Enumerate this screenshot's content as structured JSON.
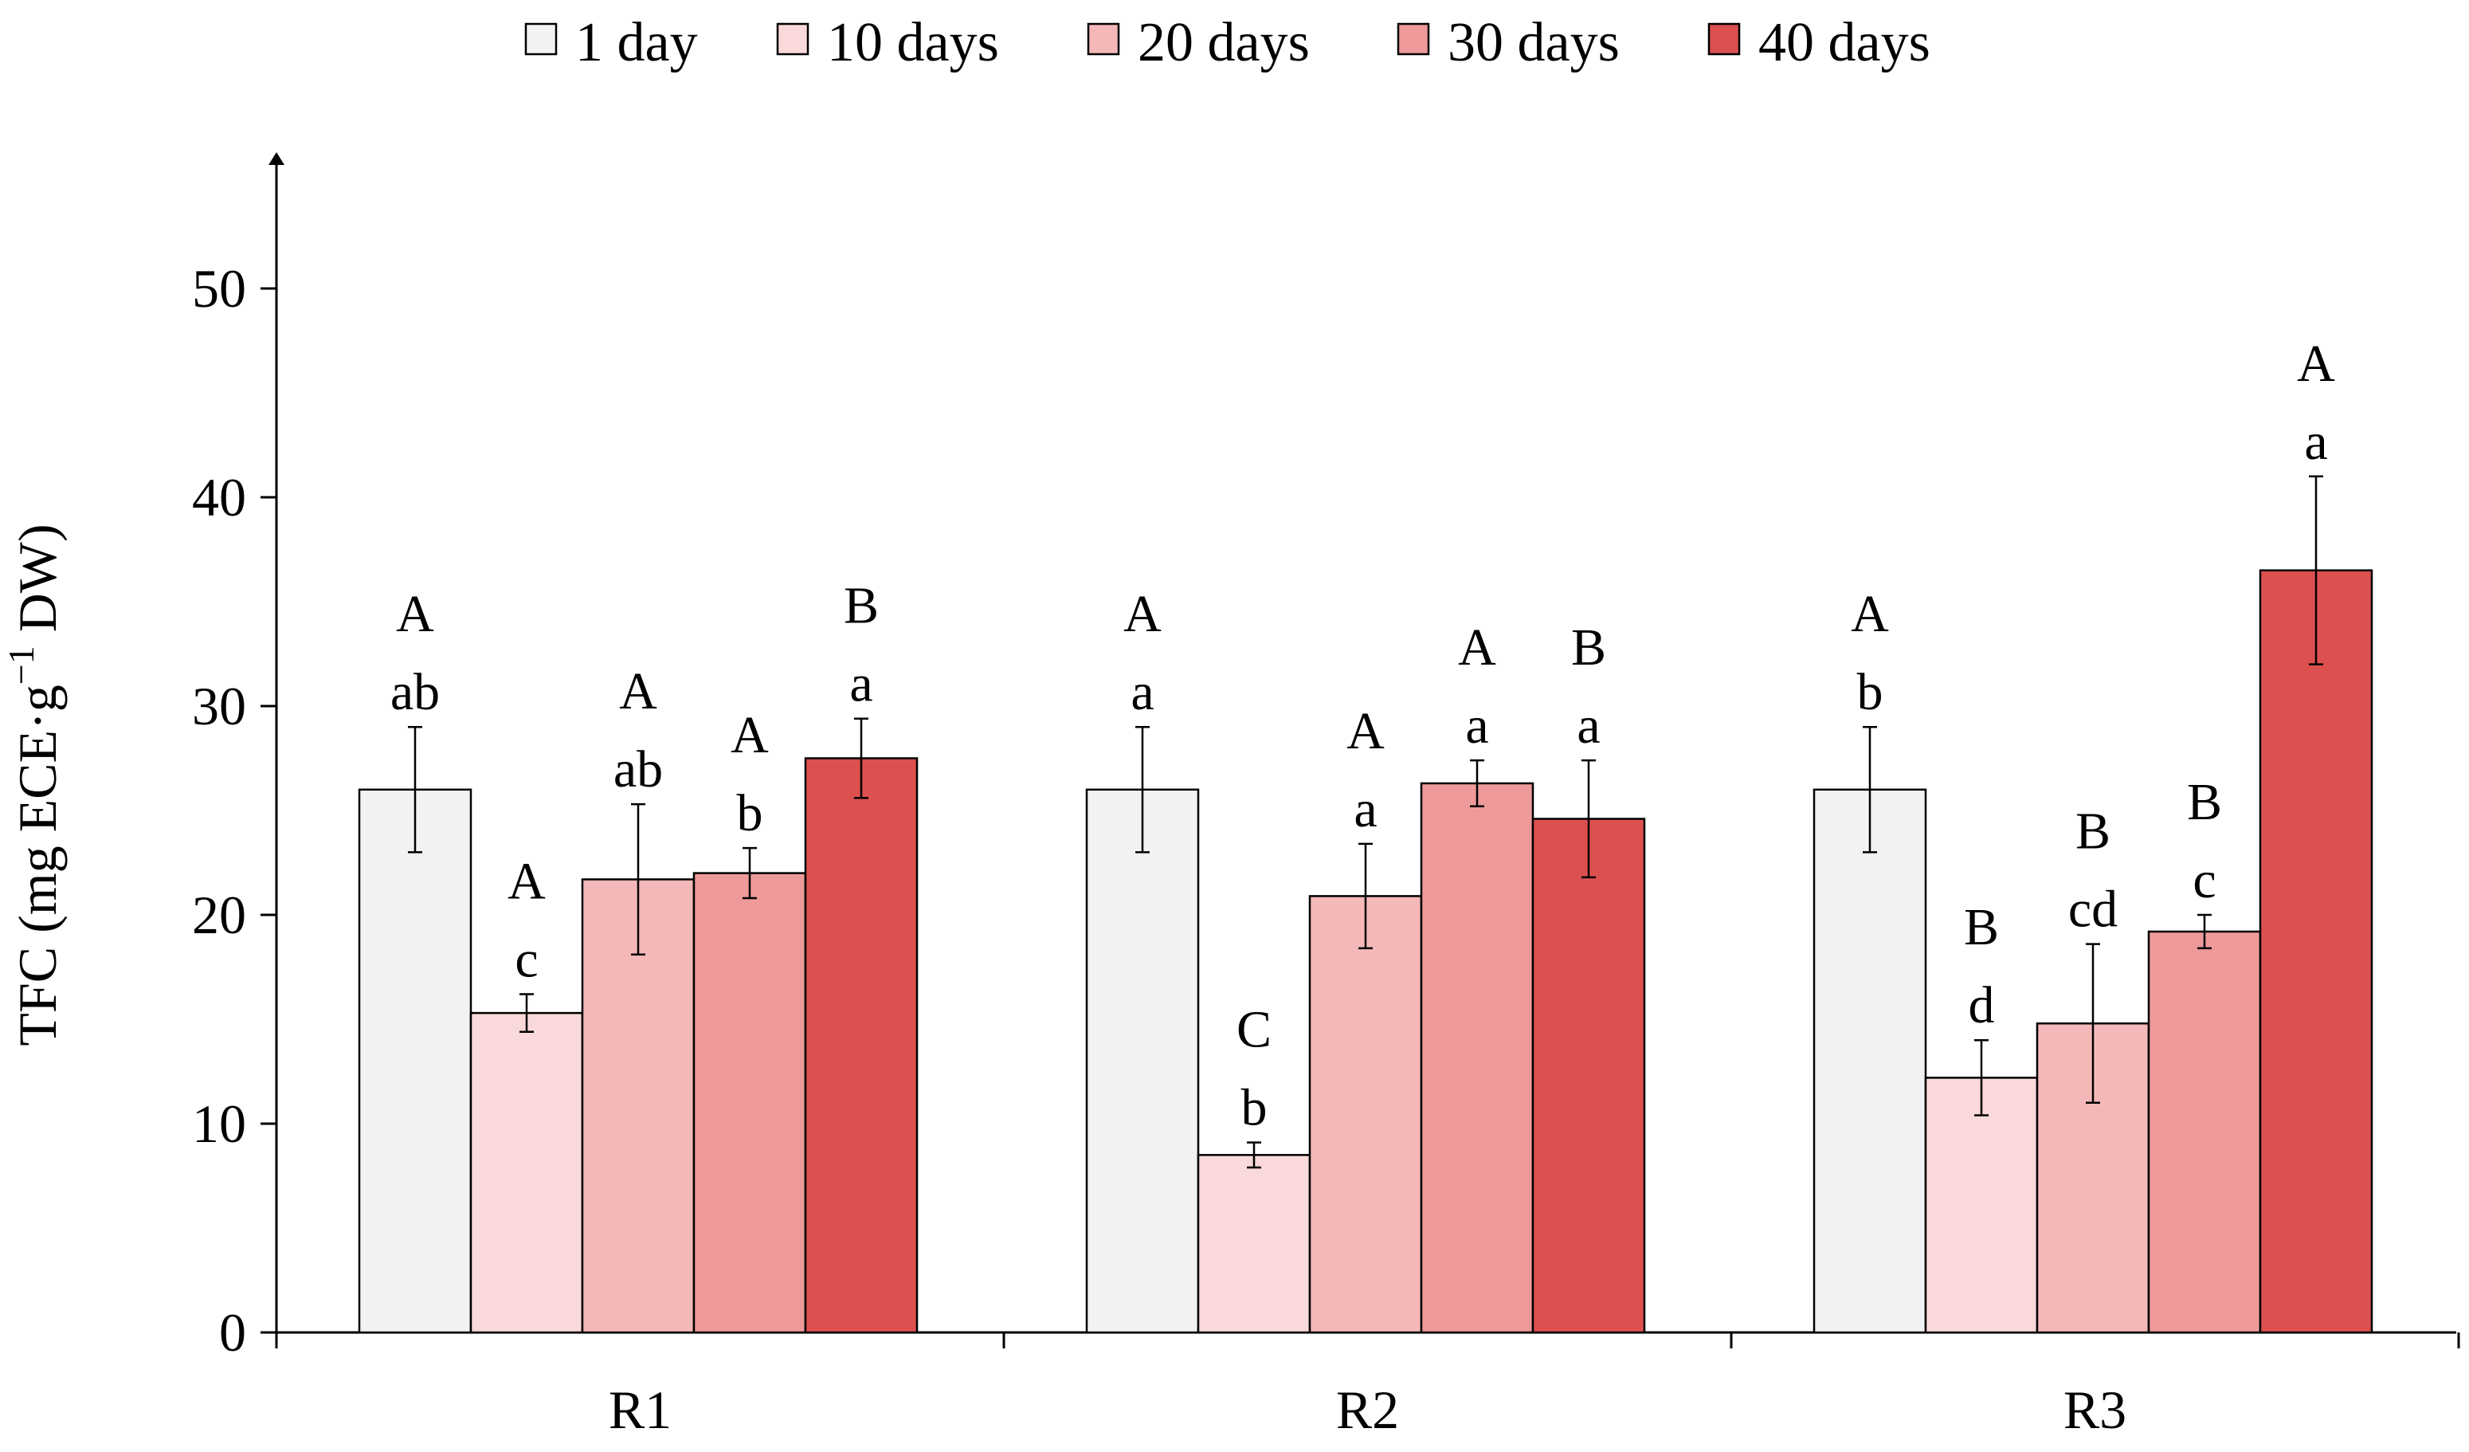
{
  "chart_data": {
    "type": "bar",
    "ylabel": {
      "main": "TFC (mg ECE·g",
      "sup": "−1",
      "tail": " DW)"
    },
    "xlabel": "",
    "ylim": [
      0,
      55
    ],
    "yticks": [
      0,
      10,
      20,
      30,
      40,
      50
    ],
    "grid": false,
    "legend_position": "top",
    "categories": [
      "R1",
      "R2",
      "R3"
    ],
    "series": [
      {
        "name": "1 day",
        "color": "#f2f2f2",
        "values": [
          26.0,
          26.0,
          26.0
        ],
        "errors": [
          3.0,
          3.0,
          3.0
        ],
        "upper_letters": [
          "A",
          "A",
          "A"
        ],
        "lower_letters": [
          "ab",
          "a",
          "b"
        ]
      },
      {
        "name": "10 days",
        "color": "#f9d9d9",
        "values": [
          15.3,
          8.5,
          12.2
        ],
        "errors": [
          0.9,
          0.6,
          1.8
        ],
        "upper_letters": [
          "A",
          "C",
          "B"
        ],
        "lower_letters": [
          "c",
          "b",
          "d"
        ]
      },
      {
        "name": "20 days",
        "color": "#f4b8b8",
        "values": [
          21.7,
          20.9,
          14.8
        ],
        "errors": [
          3.6,
          2.5,
          3.8
        ],
        "upper_letters": [
          "A",
          "A",
          "B"
        ],
        "lower_letters": [
          "ab",
          "a",
          "cd"
        ]
      },
      {
        "name": "30 days",
        "color": "#ee9a9a",
        "values": [
          22.0,
          26.3,
          19.2
        ],
        "errors": [
          1.2,
          1.1,
          0.8
        ],
        "upper_letters": [
          "A",
          "A",
          "B"
        ],
        "lower_letters": [
          "b",
          "a",
          "c"
        ]
      },
      {
        "name": "40 days",
        "color": "#dd5050",
        "values": [
          27.5,
          24.6,
          36.5
        ],
        "errors": [
          1.9,
          2.8,
          4.5
        ],
        "upper_letters": [
          "B",
          "B",
          "A"
        ],
        "lower_letters": [
          "a",
          "a",
          "a"
        ]
      }
    ]
  }
}
